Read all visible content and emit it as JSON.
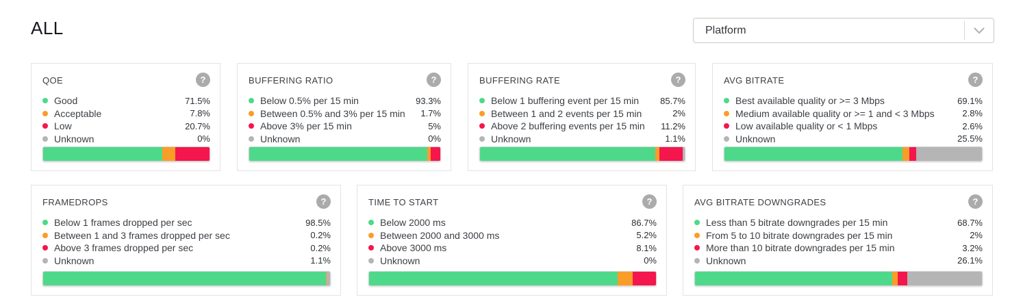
{
  "page": {
    "title": "ALL"
  },
  "filter": {
    "placeholder": "Platform"
  },
  "icons": {
    "help": "?"
  },
  "colors": {
    "good": "#4ed98a",
    "warn": "#fa9d28",
    "bad": "#f4164c",
    "unknown": "#b5b5b5"
  },
  "cards": [
    {
      "title": "QOE",
      "rows": [
        {
          "label": "Good",
          "value": "71.5%",
          "pct": 71.5,
          "color": "good"
        },
        {
          "label": "Acceptable",
          "value": "7.8%",
          "pct": 7.8,
          "color": "warn"
        },
        {
          "label": "Low",
          "value": "20.7%",
          "pct": 20.7,
          "color": "bad"
        },
        {
          "label": "Unknown",
          "value": "0%",
          "pct": 0,
          "color": "unknown"
        }
      ]
    },
    {
      "title": "BUFFERING RATIO",
      "rows": [
        {
          "label": "Below 0.5% per 15 min",
          "value": "93.3%",
          "pct": 93.3,
          "color": "good"
        },
        {
          "label": "Between 0.5% and 3% per 15 min",
          "value": "1.7%",
          "pct": 1.7,
          "color": "warn"
        },
        {
          "label": "Above 3% per 15 min",
          "value": "5%",
          "pct": 5,
          "color": "bad"
        },
        {
          "label": "Unknown",
          "value": "0%",
          "pct": 0,
          "color": "unknown"
        }
      ]
    },
    {
      "title": "BUFFERING RATE",
      "rows": [
        {
          "label": "Below 1 buffering event per 15 min",
          "value": "85.7%",
          "pct": 85.7,
          "color": "good"
        },
        {
          "label": "Between 1 and 2 events per 15 min",
          "value": "2%",
          "pct": 2,
          "color": "warn"
        },
        {
          "label": "Above 2 buffering events per 15 min",
          "value": "11.2%",
          "pct": 11.2,
          "color": "bad"
        },
        {
          "label": "Unknown",
          "value": "1.1%",
          "pct": 1.1,
          "color": "unknown"
        }
      ]
    },
    {
      "title": "AVG BITRATE",
      "rows": [
        {
          "label": "Best available quality or >= 3 Mbps",
          "value": "69.1%",
          "pct": 69.1,
          "color": "good"
        },
        {
          "label": "Medium available quality or >= 1 and < 3 Mbps",
          "value": "2.8%",
          "pct": 2.8,
          "color": "warn"
        },
        {
          "label": "Low available quality or < 1 Mbps",
          "value": "2.6%",
          "pct": 2.6,
          "color": "bad"
        },
        {
          "label": "Unknown",
          "value": "25.5%",
          "pct": 25.5,
          "color": "unknown"
        }
      ]
    },
    {
      "title": "FRAMEDROPS",
      "rows": [
        {
          "label": "Below 1 frames dropped per sec",
          "value": "98.5%",
          "pct": 98.5,
          "color": "good"
        },
        {
          "label": "Between 1 and 3 frames dropped per sec",
          "value": "0.2%",
          "pct": 0.2,
          "color": "warn"
        },
        {
          "label": "Above 3 frames dropped per sec",
          "value": "0.2%",
          "pct": 0.2,
          "color": "bad"
        },
        {
          "label": "Unknown",
          "value": "1.1%",
          "pct": 1.1,
          "color": "unknown"
        }
      ]
    },
    {
      "title": "TIME TO START",
      "rows": [
        {
          "label": "Below 2000 ms",
          "value": "86.7%",
          "pct": 86.7,
          "color": "good"
        },
        {
          "label": "Between 2000 and 3000 ms",
          "value": "5.2%",
          "pct": 5.2,
          "color": "warn"
        },
        {
          "label": "Above 3000 ms",
          "value": "8.1%",
          "pct": 8.1,
          "color": "bad"
        },
        {
          "label": "Unknown",
          "value": "0%",
          "pct": 0,
          "color": "unknown"
        }
      ]
    },
    {
      "title": "AVG BITRATE DOWNGRADES",
      "rows": [
        {
          "label": "Less than 5 bitrate downgrades per 15 min",
          "value": "68.7%",
          "pct": 68.7,
          "color": "good"
        },
        {
          "label": "From 5 to 10 bitrate downgrades per 15 min",
          "value": "2%",
          "pct": 2,
          "color": "warn"
        },
        {
          "label": "More than 10 bitrate downgrades per 15 min",
          "value": "3.2%",
          "pct": 3.2,
          "color": "bad"
        },
        {
          "label": "Unknown",
          "value": "26.1%",
          "pct": 26.1,
          "color": "unknown"
        }
      ]
    }
  ]
}
